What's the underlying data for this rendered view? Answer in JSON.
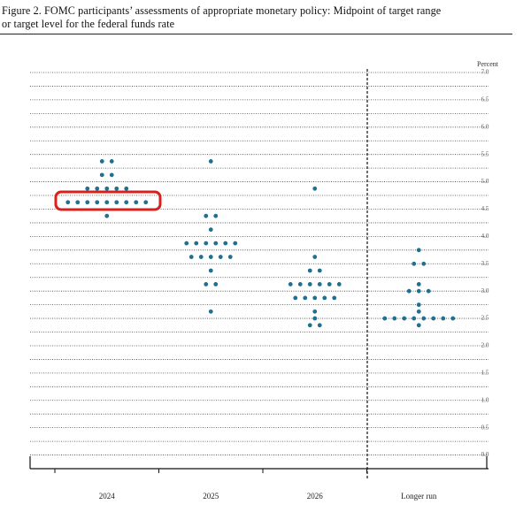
{
  "chart_data": {
    "type": "dot",
    "title_lines": [
      "Figure 2.  FOMC participants’ assessments of appropriate monetary policy:  Midpoint of target range",
      "or target level for the federal funds rate"
    ],
    "y_label": "Percent",
    "ylim": [
      -0.25,
      7.0
    ],
    "yticks": [
      {
        "value": 0,
        "label": "0.0"
      },
      {
        "value": 0.5,
        "label": "0.5"
      },
      {
        "value": 1,
        "label": "1.0"
      },
      {
        "value": 1.5,
        "label": "1.5"
      },
      {
        "value": 2,
        "label": "2.0"
      },
      {
        "value": 2.5,
        "label": "2.5"
      },
      {
        "value": 3,
        "label": "3.0"
      },
      {
        "value": 3.5,
        "label": "3.5"
      },
      {
        "value": 4,
        "label": "4.0"
      },
      {
        "value": 4.5,
        "label": "4.5"
      },
      {
        "value": 5,
        "label": "5.0"
      },
      {
        "value": 5.5,
        "label": "5.5"
      },
      {
        "value": 6,
        "label": "6.0"
      },
      {
        "value": 6.5,
        "label": "6.5"
      },
      {
        "value": 7,
        "label": "7.0"
      }
    ],
    "grid": true,
    "color": "#1f7091",
    "categories": [
      "2024",
      "2025",
      "2026",
      "Longer run"
    ],
    "dots": [
      [
        {
          "value": 5.375,
          "count": 2
        },
        {
          "value": 5.125,
          "count": 2
        },
        {
          "value": 4.875,
          "count": 5
        },
        {
          "value": 4.625,
          "count": 9
        },
        {
          "value": 4.375,
          "count": 1
        }
      ],
      [
        {
          "value": 5.375,
          "count": 1
        },
        {
          "value": 4.375,
          "count": 2
        },
        {
          "value": 4.125,
          "count": 1
        },
        {
          "value": 3.875,
          "count": 6
        },
        {
          "value": 3.625,
          "count": 5
        },
        {
          "value": 3.375,
          "count": 1
        },
        {
          "value": 3.125,
          "count": 2
        },
        {
          "value": 2.625,
          "count": 1
        }
      ],
      [
        {
          "value": 4.875,
          "count": 1
        },
        {
          "value": 3.625,
          "count": 1
        },
        {
          "value": 3.375,
          "count": 2
        },
        {
          "value": 3.125,
          "count": 6
        },
        {
          "value": 2.875,
          "count": 5
        },
        {
          "value": 2.625,
          "count": 1
        },
        {
          "value": 2.5,
          "count": 1
        },
        {
          "value": 2.375,
          "count": 2
        }
      ],
      [
        {
          "value": 3.75,
          "count": 1
        },
        {
          "value": 3.5,
          "count": 2
        },
        {
          "value": 3.125,
          "count": 1
        },
        {
          "value": 3.0,
          "count": 3
        },
        {
          "value": 2.75,
          "count": 1
        },
        {
          "value": 2.625,
          "count": 1
        },
        {
          "value": 2.5,
          "count": 8
        },
        {
          "value": 2.375,
          "count": 1
        }
      ]
    ]
  }
}
